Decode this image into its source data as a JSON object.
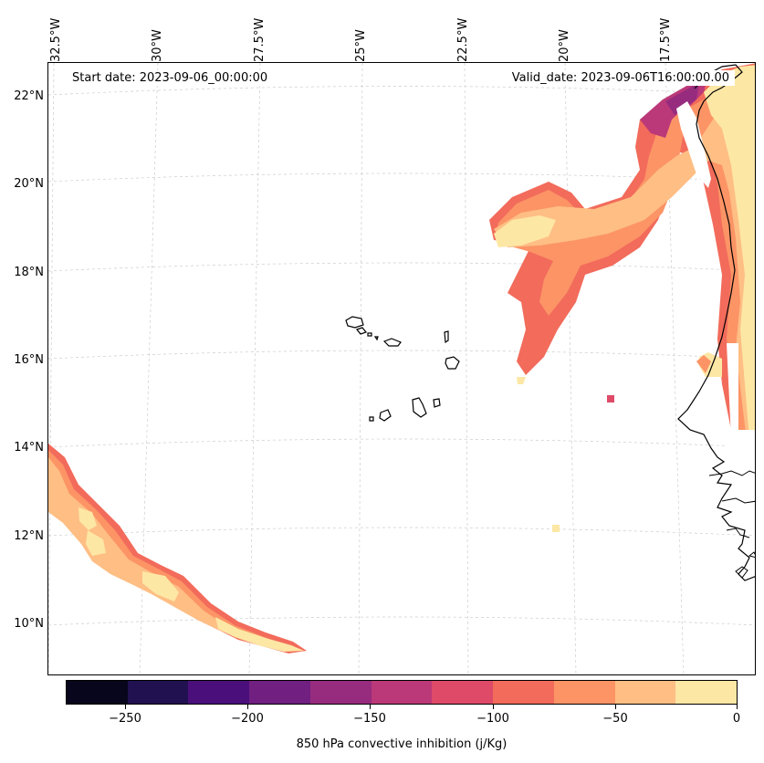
{
  "map": {
    "start_label": "Start date: 2023-09-06_00:00:00",
    "valid_label": "Valid_date: 2023-09-06T16:00:00.00",
    "lon_labels": [
      "32.5°W",
      "30°W",
      "27.5°W",
      "25°W",
      "22.5°W",
      "20°W",
      "17.5°W"
    ],
    "lat_labels": [
      "22°N",
      "20°N",
      "18°N",
      "16°N",
      "14°N",
      "12°N",
      "10°N"
    ]
  },
  "colorbar": {
    "title": "850 hPa convective inhibition (j/Kg)",
    "tick_labels": [
      "−250",
      "−200",
      "−150",
      "−100",
      "−50",
      "0"
    ],
    "colors": [
      "#07061c",
      "#221150",
      "#4a0f7b",
      "#711f81",
      "#972c7f",
      "#bb3978",
      "#de4a68",
      "#f26b5b",
      "#fc9466",
      "#febe84",
      "#fde7a5"
    ]
  }
}
